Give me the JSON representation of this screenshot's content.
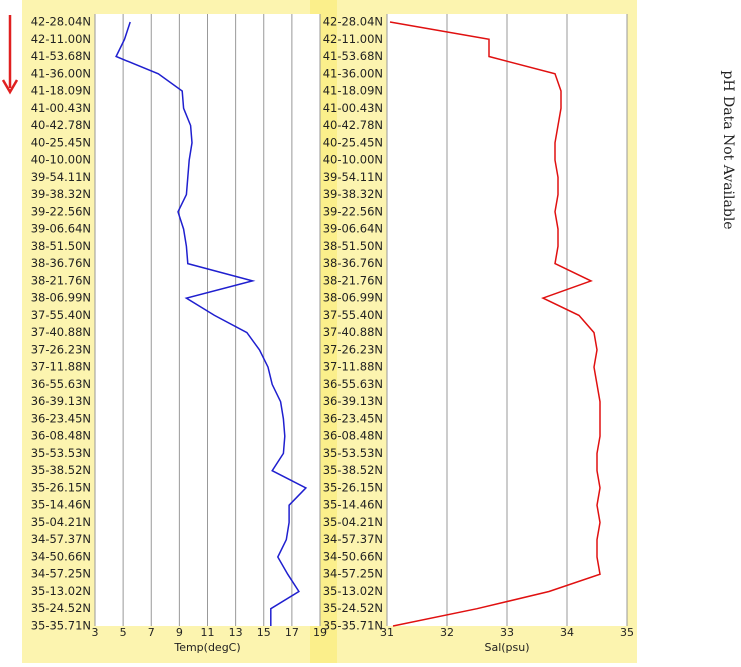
{
  "note": "pH Data Not Available",
  "chart_data": [
    {
      "type": "line",
      "x_label": "Temp(degC)",
      "orientation": "horizontal",
      "color": "#1f1fcf",
      "categories": [
        "42-28.04N",
        "42-11.00N",
        "41-53.68N",
        "41-36.00N",
        "41-18.09N",
        "41-00.43N",
        "40-42.78N",
        "40-25.45N",
        "40-10.00N",
        "39-54.11N",
        "39-38.32N",
        "39-22.56N",
        "39-06.64N",
        "38-51.50N",
        "38-36.76N",
        "38-21.76N",
        "38-06.99N",
        "37-55.40N",
        "37-40.88N",
        "37-26.23N",
        "37-11.88N",
        "36-55.63N",
        "36-39.13N",
        "36-23.45N",
        "36-08.48N",
        "35-53.53N",
        "35-38.52N",
        "35-26.15N",
        "35-14.46N",
        "35-04.21N",
        "34-57.37N",
        "34-50.66N",
        "34-57.25N",
        "35-13.02N",
        "35-24.52N",
        "35-35.71N"
      ],
      "values": [
        5.5,
        5.1,
        4.5,
        7.5,
        9.2,
        9.3,
        9.8,
        9.9,
        9.7,
        9.6,
        9.5,
        8.9,
        9.3,
        9.5,
        9.6,
        14.2,
        9.5,
        11.5,
        13.8,
        14.7,
        15.3,
        15.6,
        16.2,
        16.4,
        16.5,
        16.4,
        15.6,
        18.0,
        16.8,
        16.8,
        16.6,
        16.0,
        16.7,
        17.5,
        15.5,
        15.5
      ],
      "xlim": [
        3,
        19
      ],
      "xticks": [
        3,
        5,
        7,
        9,
        11,
        13,
        15,
        17,
        19
      ],
      "grid": true
    },
    {
      "type": "line",
      "x_label": "Sal(psu)",
      "orientation": "horizontal",
      "color": "#e01010",
      "categories": [
        "42-28.04N",
        "42-11.00N",
        "41-53.68N",
        "41-36.00N",
        "41-18.09N",
        "41-00.43N",
        "40-42.78N",
        "40-25.45N",
        "40-10.00N",
        "39-54.11N",
        "39-38.32N",
        "39-22.56N",
        "39-06.64N",
        "38-51.50N",
        "38-36.76N",
        "38-21.76N",
        "38-06.99N",
        "37-55.40N",
        "37-40.88N",
        "37-26.23N",
        "37-11.88N",
        "36-55.63N",
        "36-39.13N",
        "36-23.45N",
        "36-08.48N",
        "35-53.53N",
        "35-38.52N",
        "35-26.15N",
        "35-14.46N",
        "35-04.21N",
        "34-57.37N",
        "34-50.66N",
        "34-57.25N",
        "35-13.02N",
        "35-24.52N",
        "35-35.71N"
      ],
      "values": [
        31.05,
        32.7,
        32.7,
        33.8,
        33.9,
        33.9,
        33.85,
        33.8,
        33.8,
        33.85,
        33.85,
        33.8,
        33.85,
        33.85,
        33.8,
        34.4,
        33.6,
        34.2,
        34.45,
        34.5,
        34.45,
        34.5,
        34.55,
        34.55,
        34.55,
        34.5,
        34.5,
        34.55,
        34.5,
        34.55,
        34.5,
        34.5,
        34.55,
        33.7,
        32.5,
        31.1
      ],
      "xlim": [
        31,
        35
      ],
      "xticks": [
        31,
        32,
        33,
        34,
        35
      ],
      "grid": true
    }
  ]
}
